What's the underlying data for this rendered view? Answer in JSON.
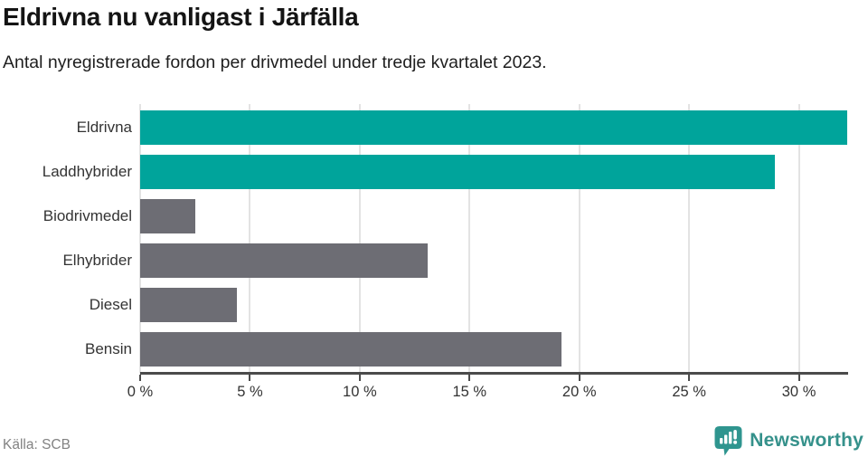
{
  "header": {
    "title": "Eldrivna nu vanligast i Järfälla",
    "subtitle": "Antal nyregistrerade fordon per drivmedel under tredje kvartalet 2023."
  },
  "footer": {
    "source": "Källa: SCB",
    "brand": "Newsworthy",
    "logo_icon": "newsworthy-speech-bubble-bar-chart-icon"
  },
  "colors": {
    "accent_teal": "#00A49B",
    "bar_gray": "#6D6D74",
    "axis": "#4B4B4B",
    "gridline": "#E3E3E3",
    "brand_teal": "#35918B",
    "text_dark": "#333333"
  },
  "chart_data": {
    "type": "bar",
    "orientation": "horizontal",
    "title": "Eldrivna nu vanligast i Järfälla",
    "subtitle": "Antal nyregistrerade fordon per drivmedel under tredje kvartalet 2023.",
    "categories": [
      "Eldrivna",
      "Laddhybrider",
      "Biodrivmedel",
      "Elhybrider",
      "Diesel",
      "Bensin"
    ],
    "values": [
      32.2,
      28.9,
      2.5,
      13.1,
      4.4,
      19.2
    ],
    "unit": "%",
    "bar_colors": [
      "#00A49B",
      "#00A49B",
      "#6D6D74",
      "#6D6D74",
      "#6D6D74",
      "#6D6D74"
    ],
    "xlabel": "",
    "ylabel": "",
    "xlim": [
      0,
      32.2
    ],
    "x_ticks": [
      0,
      5,
      10,
      15,
      20,
      25,
      30
    ],
    "x_tick_labels": [
      "0 %",
      "5 %",
      "10 %",
      "15 %",
      "20 %",
      "25 %",
      "30 %"
    ],
    "grid": true,
    "legend": false
  }
}
